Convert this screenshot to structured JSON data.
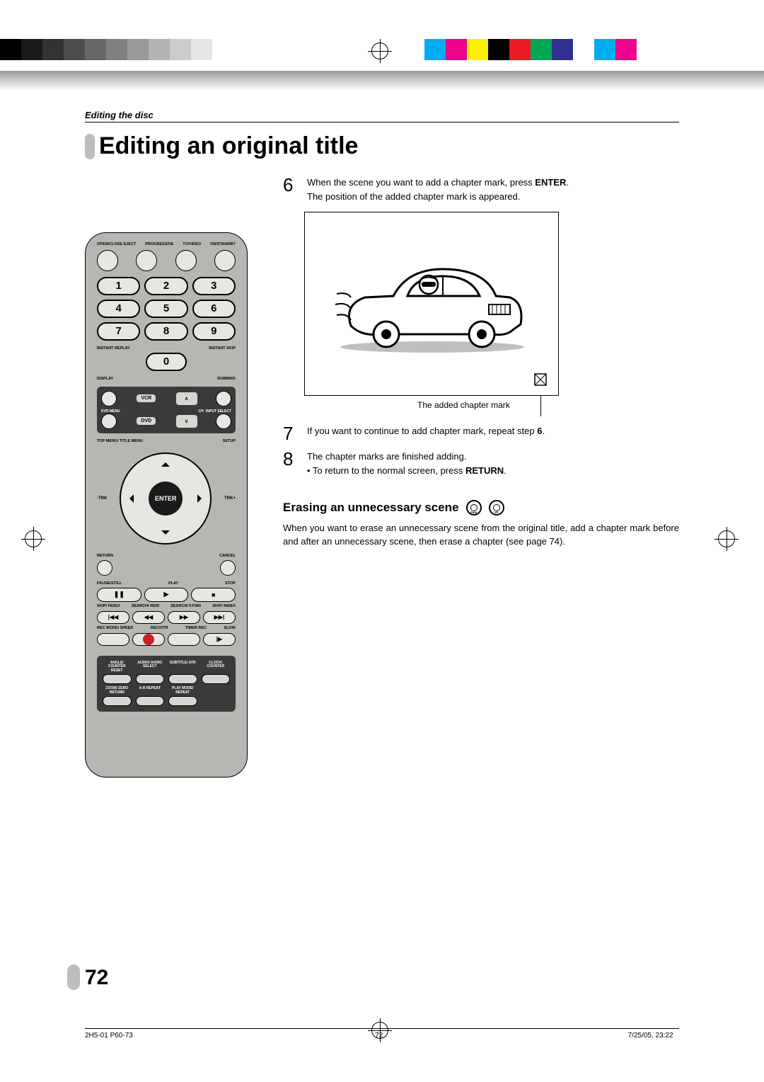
{
  "colorbars": {
    "left": [
      "#000000",
      "#1a1a1a",
      "#333333",
      "#4d4d4d",
      "#666666",
      "#808080",
      "#999999",
      "#b3b3b3",
      "#cccccc",
      "#e6e6e6"
    ],
    "right": [
      "#00aeef",
      "#ec008c",
      "#fff200",
      "#000000",
      "#ed1c24",
      "#00a651",
      "#2e3192",
      "#ffffff",
      "#00aeef",
      "#ec008c"
    ]
  },
  "header": {
    "section": "Editing the disc"
  },
  "title": "Editing an original title",
  "steps": {
    "s6": {
      "num": "6",
      "line1_a": "When the scene you want to add a chapter mark, press ",
      "line1_b": "ENTER",
      "line1_c": ".",
      "line2": "The position of the added chapter mark is appeared."
    },
    "mark_label": "The added chapter mark",
    "s7": {
      "num": "7",
      "text_a": "If you want to continue to add chapter mark, repeat step ",
      "text_b": "6",
      "text_c": "."
    },
    "s8": {
      "num": "8",
      "line1": "The chapter marks are finished adding.",
      "bullet_a": "• To return to the normal screen, press ",
      "bullet_b": "RETURN",
      "bullet_c": "."
    }
  },
  "subsection": {
    "title": "Erasing an unnecessary scene",
    "badges": [
      "RAM",
      "VR"
    ],
    "body": "When you want to erase an unnecessary scene from the original title, add a chapter mark before and after an unnecessary scene, then erase a chapter (see page 74)."
  },
  "remote": {
    "top_labels": [
      "OPEN/CLOSE EJECT",
      "PROGRESSIVE",
      "TV/VIDEO",
      "ON/STANDBY"
    ],
    "numbers": [
      "1",
      "2",
      "3",
      "4",
      "5",
      "6",
      "7",
      "8",
      "9",
      "0"
    ],
    "instant_l": "INSTANT REPLAY",
    "instant_r": "INSTANT SKIP",
    "display": "DISPLAY",
    "dubbing": "DUBBING",
    "vcr": "VCR",
    "dvd": "DVD",
    "ch": "CH",
    "input": "INPUT SELECT",
    "dvdmenu": "DVD MENU",
    "topmenu": "TOP MENU/ TITLE MENU",
    "setup": "SETUP",
    "trk_l": "-TRK",
    "enter": "ENTER",
    "trk_r": "TRK+",
    "return": "RETURN",
    "cancel": "CANCEL",
    "pause": "PAUSE/STILL",
    "play": "PLAY",
    "stop": "STOP",
    "skip_l": "SKIP/ INDEX",
    "rew": "SEARCH/ REW",
    "ffwd": "SEARCH/ F.FWD",
    "skip_r": "SKIP/ INDEX",
    "rec": "REC MODE/ SPEED",
    "recotr": "REC/OTR",
    "timer": "TIMER REC",
    "slow": "SLOW",
    "bottom_labels": [
      "ANGLE/ COUNTER RESET",
      "AUDIO/ AUDIO SELECT",
      "SUBTITLE/ ATR",
      "CLOCK/ COUNTER"
    ],
    "bottom_labels2": [
      "ZOOM/ ZERO RETURN",
      "A-B REPEAT",
      "PLAY MODE/ REPEAT",
      ""
    ]
  },
  "page_number": "72",
  "footer": {
    "left": "2H5-01 P60-73",
    "mid": "72",
    "right": "7/25/05, 23:22"
  }
}
